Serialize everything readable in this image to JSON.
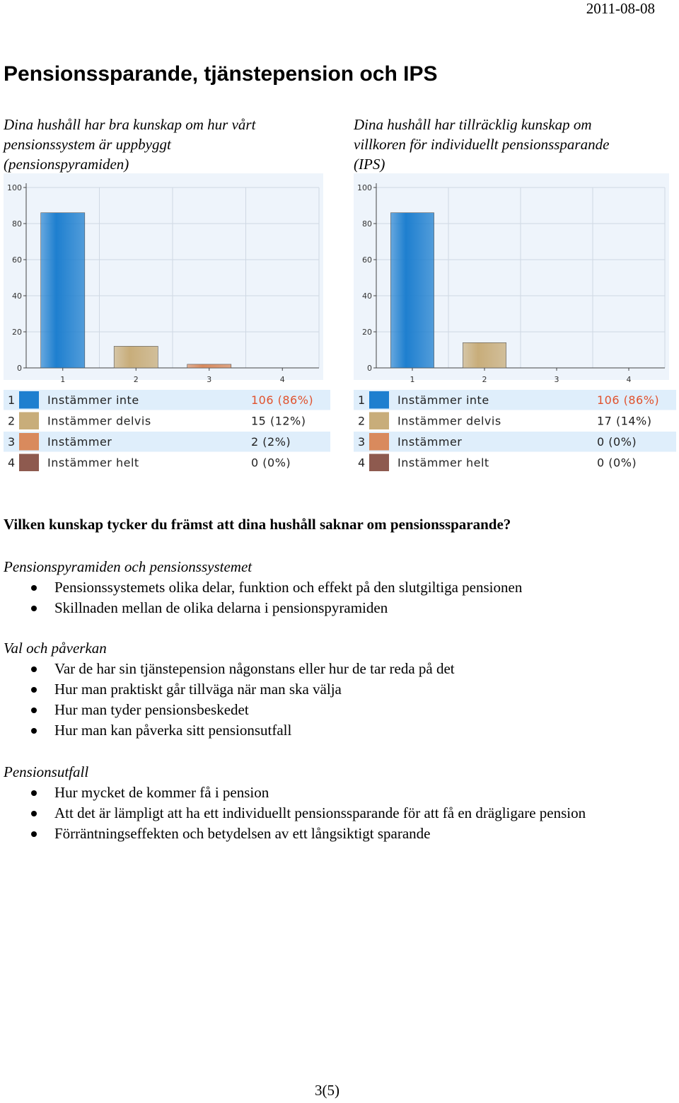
{
  "header": {
    "date": "2011-08-08",
    "title": "Pensionssparande, tjänstepension och IPS"
  },
  "charts": [
    {
      "title_lines": [
        "Dina hushåll har bra kunskap om hur vårt",
        "pensionssystem är uppbyggt",
        "(pensionspyramiden)"
      ]
    },
    {
      "title_lines": [
        "Dina hushåll har tillräcklig kunskap om",
        "villkoren för individuellt pensionssparande",
        "(IPS)"
      ]
    }
  ],
  "chart_data": [
    {
      "type": "bar",
      "categories": [
        "1",
        "2",
        "3",
        "4"
      ],
      "values": [
        86,
        12,
        2,
        0
      ],
      "ylim": [
        0,
        100
      ],
      "yticks": [
        "0",
        "20",
        "40",
        "60",
        "80",
        "100"
      ],
      "grid": true,
      "legend": {
        "placement": "bottom",
        "items": [
          {
            "num": "1",
            "label": "Instämmer inte",
            "value": "106 (86%)"
          },
          {
            "num": "2",
            "label": "Instämmer delvis",
            "value": "15 (12%)"
          },
          {
            "num": "3",
            "label": "Instämmer",
            "value": "2 (2%)"
          },
          {
            "num": "4",
            "label": "Instämmer helt",
            "value": "0 (0%)"
          }
        ]
      }
    },
    {
      "type": "bar",
      "categories": [
        "1",
        "2",
        "3",
        "4"
      ],
      "values": [
        86,
        14,
        0,
        0
      ],
      "ylim": [
        0,
        100
      ],
      "yticks": [
        "0",
        "20",
        "40",
        "60",
        "80",
        "100"
      ],
      "grid": true,
      "legend": {
        "placement": "bottom",
        "items": [
          {
            "num": "1",
            "label": "Instämmer inte",
            "value": "106 (86%)"
          },
          {
            "num": "2",
            "label": "Instämmer delvis",
            "value": "17 (14%)"
          },
          {
            "num": "3",
            "label": "Instämmer",
            "value": "0 (0%)"
          },
          {
            "num": "4",
            "label": "Instämmer helt",
            "value": "0 (0%)"
          }
        ]
      }
    }
  ],
  "colors": {
    "bar_1": "#1e7fcf",
    "bar_2": "#c8ad7a",
    "bar_3": "#d98a5d",
    "bar_4": "#8e5a4f",
    "plot_bg": "#eef4fb",
    "legend_bg": "#dfeefb",
    "highlight": "#e0522d"
  },
  "question": "Vilken kunskap tycker du främst att dina hushåll saknar om pensionssparande?",
  "sections": [
    {
      "heading": "Pensionspyramiden och pensionssystemet",
      "items": [
        "Pensionssystemets olika delar, funktion och effekt på den slutgiltiga pensionen",
        "Skillnaden mellan de olika delarna i pensionspyramiden"
      ]
    },
    {
      "heading": "Val och påverkan",
      "items": [
        "Var de har sin tjänstepension någonstans eller hur de tar reda på det",
        "Hur man praktiskt går tillväga när man ska välja",
        "Hur man tyder pensionsbeskedet",
        "Hur man kan påverka sitt pensionsutfall"
      ]
    },
    {
      "heading": "Pensionsutfall",
      "items": [
        "Hur mycket de kommer få i pension",
        "Att det är lämpligt att ha ett individuellt pensionssparande för att få en drägligare pension",
        "Förräntningseffekten och betydelsen av ett långsiktigt sparande"
      ]
    }
  ],
  "footer": {
    "page": "3(5)"
  }
}
